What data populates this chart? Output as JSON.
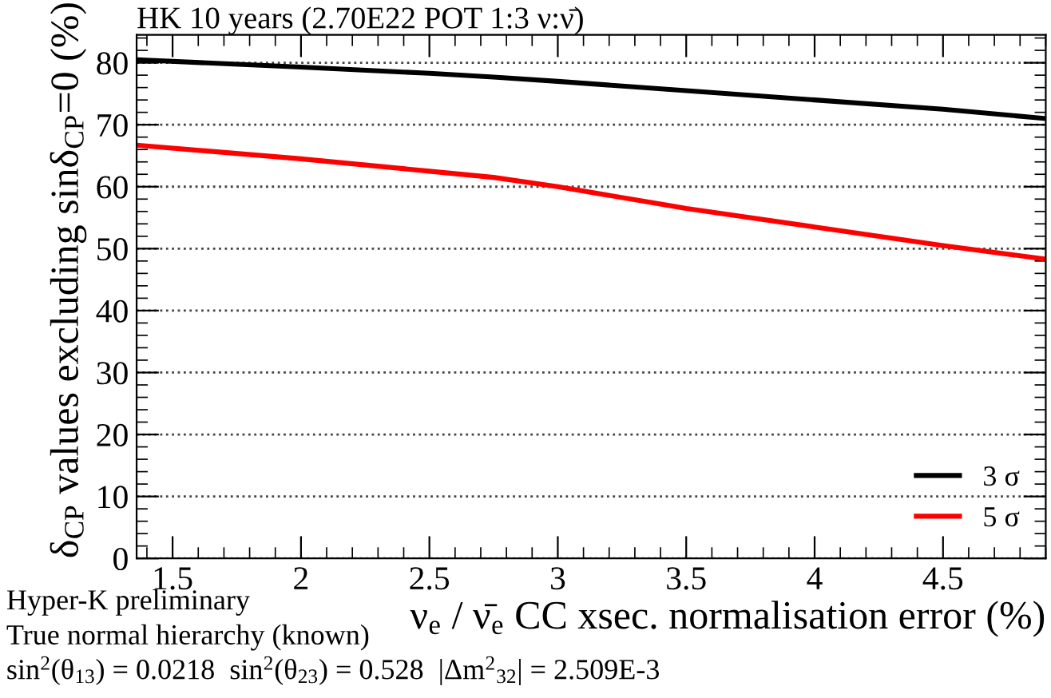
{
  "chart_data": {
    "type": "line",
    "title": "HK 10 years (2.70E22 POT 1:3 ν:ν̄)",
    "xlabel": "ν$_{e}$ / ν̄$_{e}$ CC xsec. normalisation error (%)",
    "ylabel": "δ$_{CP}$ values excluding sinδ$_{CP}$=0 (%)",
    "x": [
      1.36,
      2,
      2.5,
      2.75,
      3,
      3.5,
      4,
      4.5,
      4.9
    ],
    "series": [
      {
        "name": "3 σ",
        "color": "#000000",
        "values": [
          80.5,
          79.3,
          78.3,
          77.7,
          77,
          75.5,
          74,
          72.5,
          71
        ]
      },
      {
        "name": "5 σ",
        "color": "#ff0000",
        "values": [
          66.7,
          64.5,
          62.5,
          61.5,
          60,
          56.5,
          53.5,
          50.5,
          48.3
        ]
      }
    ],
    "xlim": [
      1.36,
      4.9
    ],
    "ylim": [
      0,
      84.5
    ],
    "xticks": [
      1.5,
      2,
      2.5,
      3,
      3.5,
      4,
      4.5
    ],
    "yticks": [
      0,
      10,
      20,
      30,
      40,
      50,
      60,
      70,
      80
    ],
    "grid": "y",
    "legend": "bottom right",
    "marker": "none",
    "line_style": "solid",
    "annotations": [
      "Hyper-K preliminary",
      "True normal hierarchy (known)",
      "sin$^{2}$(θ$_{13}$) = 0.0218  sin$^{2}$(θ$_{23}$) = 0.528  |Δm$^{2}$$_{32}$| = 2.509E-3"
    ]
  }
}
